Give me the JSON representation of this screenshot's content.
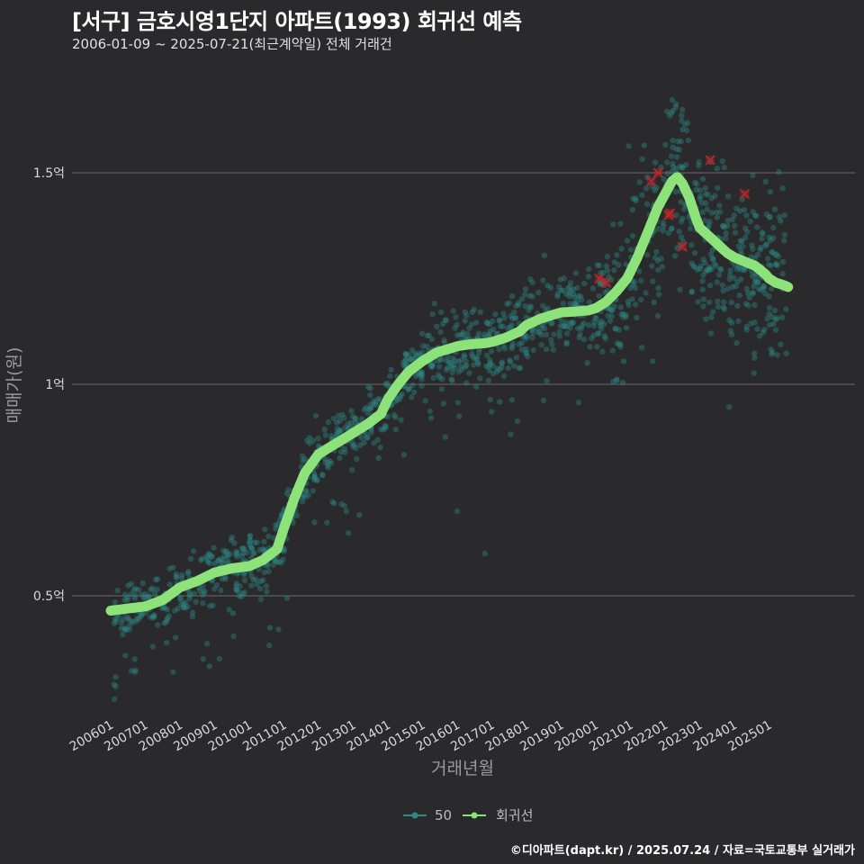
{
  "header": {
    "title": "[서구] 금호시영1단지 아파트(1993) 회귀선 예측",
    "subtitle": "2006-01-09 ~ 2025-07-21(최근계약일) 전체 거래건"
  },
  "footer": {
    "credit": "©디아파트(dapt.kr) / 2025.07.24 / 자료=국토교통부 실거래가"
  },
  "colors": {
    "background": "#2a2a2c",
    "grid": "#6a6a6a",
    "points": "#2e8a86",
    "regression": "#8ee27a",
    "outlier": "#c0282d"
  },
  "chart_data": {
    "type": "scatter",
    "title": "[서구] 금호시영1단지 아파트(1993) 회귀선 예측",
    "xlabel": "거래년월",
    "ylabel": "매매가(원)",
    "xlim": [
      2006.0,
      2025.8
    ],
    "ylim": [
      0.2,
      1.72
    ],
    "y_unit": "억",
    "yticks": [
      {
        "value": 0.5,
        "label": "0.5억"
      },
      {
        "value": 1.0,
        "label": "1억"
      },
      {
        "value": 1.5,
        "label": "1.5억"
      }
    ],
    "xticks": [
      {
        "value": 2006.0,
        "label": "200601"
      },
      {
        "value": 2007.0,
        "label": "200701"
      },
      {
        "value": 2008.0,
        "label": "200801"
      },
      {
        "value": 2009.0,
        "label": "200901"
      },
      {
        "value": 2010.0,
        "label": "201001"
      },
      {
        "value": 2011.0,
        "label": "201101"
      },
      {
        "value": 2012.0,
        "label": "201201"
      },
      {
        "value": 2013.0,
        "label": "201301"
      },
      {
        "value": 2014.0,
        "label": "201401"
      },
      {
        "value": 2015.0,
        "label": "201501"
      },
      {
        "value": 2016.0,
        "label": "201601"
      },
      {
        "value": 2017.0,
        "label": "201701"
      },
      {
        "value": 2018.0,
        "label": "201801"
      },
      {
        "value": 2019.0,
        "label": "201901"
      },
      {
        "value": 2020.0,
        "label": "202001"
      },
      {
        "value": 2021.0,
        "label": "202101"
      },
      {
        "value": 2022.0,
        "label": "202201"
      },
      {
        "value": 2023.0,
        "label": "202301"
      },
      {
        "value": 2024.0,
        "label": "202401"
      },
      {
        "value": 2025.0,
        "label": "202501"
      }
    ],
    "legend": [
      {
        "name": "50",
        "kind": "points"
      },
      {
        "name": "회귀선",
        "kind": "line"
      }
    ],
    "regression": {
      "name": "회귀선",
      "x": [
        2006.0,
        2006.5,
        2007.0,
        2007.5,
        2008.0,
        2008.5,
        2009.0,
        2009.5,
        2010.0,
        2010.4,
        2010.8,
        2011.0,
        2011.3,
        2011.6,
        2012.0,
        2012.4,
        2012.8,
        2013.0,
        2013.4,
        2013.8,
        2014.0,
        2014.3,
        2014.6,
        2015.0,
        2015.4,
        2015.8,
        2016.0,
        2016.4,
        2016.8,
        2017.0,
        2017.4,
        2017.8,
        2018.0,
        2018.4,
        2018.8,
        2019.0,
        2019.4,
        2019.8,
        2020.0,
        2020.3,
        2020.6,
        2020.9,
        2021.2,
        2021.5,
        2021.8,
        2022.0,
        2022.2,
        2022.35,
        2022.5,
        2022.7,
        2022.9,
        2023.0,
        2023.2,
        2023.4,
        2023.6,
        2023.8,
        2024.0,
        2024.3,
        2024.6,
        2024.9,
        2025.0,
        2025.2,
        2025.4,
        2025.55
      ],
      "y": [
        0.465,
        0.47,
        0.475,
        0.49,
        0.52,
        0.535,
        0.555,
        0.565,
        0.57,
        0.585,
        0.61,
        0.66,
        0.73,
        0.79,
        0.835,
        0.855,
        0.875,
        0.885,
        0.905,
        0.93,
        0.965,
        1.0,
        1.03,
        1.055,
        1.075,
        1.085,
        1.09,
        1.095,
        1.097,
        1.1,
        1.11,
        1.125,
        1.14,
        1.155,
        1.165,
        1.17,
        1.172,
        1.175,
        1.18,
        1.195,
        1.22,
        1.25,
        1.3,
        1.36,
        1.42,
        1.45,
        1.48,
        1.49,
        1.475,
        1.44,
        1.39,
        1.37,
        1.355,
        1.34,
        1.325,
        1.31,
        1.3,
        1.29,
        1.28,
        1.26,
        1.25,
        1.24,
        1.235,
        1.23
      ]
    },
    "outliers": [
      {
        "x": 2020.1,
        "y": 1.25
      },
      {
        "x": 2020.3,
        "y": 1.24
      },
      {
        "x": 2021.6,
        "y": 1.48
      },
      {
        "x": 2021.8,
        "y": 1.5
      },
      {
        "x": 2022.1,
        "y": 1.4
      },
      {
        "x": 2022.15,
        "y": 1.405
      },
      {
        "x": 2022.5,
        "y": 1.325
      },
      {
        "x": 2023.3,
        "y": 1.53
      },
      {
        "x": 2024.3,
        "y": 1.45
      }
    ],
    "scatter_summary": {
      "name": "50",
      "note": "Dense cloud of several hundred transactions around the regression line, spread about ±0.06억 with sparse outliers",
      "sample_low_outliers": [
        {
          "x": 2006.1,
          "y": 0.29
        },
        {
          "x": 2006.7,
          "y": 0.32
        },
        {
          "x": 2007.8,
          "y": 0.32
        },
        {
          "x": 2016.0,
          "y": 0.7
        },
        {
          "x": 2016.8,
          "y": 0.6
        },
        {
          "x": 2012.8,
          "y": 0.7
        }
      ]
    }
  }
}
